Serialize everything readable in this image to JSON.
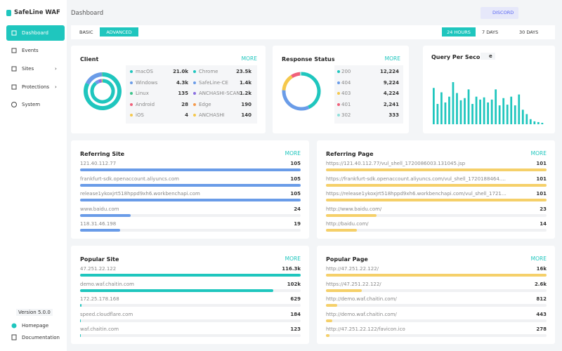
{
  "sidebar": {
    "brand": "SafeLine WAF",
    "nav": [
      "Dashboard",
      "Events",
      "Sites",
      "Protections",
      "System"
    ],
    "version": "Version 5.0.0",
    "links": [
      "Homepage",
      "Documentation"
    ]
  },
  "header": {
    "title": "Dashboard",
    "discord": "DISCORD"
  },
  "tabs": [
    "BASIC",
    "ADVANCED"
  ],
  "ranges": [
    "24 HOURS",
    "7 DAYS",
    "30 DAYS"
  ],
  "client": {
    "title": "Client",
    "more": "MORE",
    "os": [
      {
        "name": "macOS",
        "value": 21000,
        "value_label": "21.0k",
        "color": "#1fc6be"
      },
      {
        "name": "Windows",
        "value": 4300,
        "value_label": "4.3k",
        "color": "#6a9ce8"
      },
      {
        "name": "Linux",
        "value": 135,
        "color": "#3cc38a"
      },
      {
        "name": "Android",
        "value": 28,
        "color": "#f0607a"
      },
      {
        "name": "iOS",
        "value": 4,
        "color": "#f5c84c"
      }
    ],
    "browser": [
      {
        "name": "Chrome",
        "value": 23500,
        "value_label": "23.5k",
        "color": "#1fc6be"
      },
      {
        "name": "SafeLine-CE",
        "value": 1400,
        "value_label": "1.4k",
        "color": "#6a9ce8"
      },
      {
        "name": "ANCHASHI-SCAN",
        "value": 1200,
        "value_label": "1.2k",
        "color": "#8b6fe0"
      },
      {
        "name": "Edge",
        "value": 190,
        "color": "#f59a4c"
      },
      {
        "name": "ANCHASHI",
        "value": 140,
        "color": "#f5c84c"
      }
    ]
  },
  "response": {
    "title": "Response Status",
    "more": "MORE",
    "items": [
      {
        "name": "200",
        "value": 12224,
        "value_label": "12,224",
        "color": "#1fc6be"
      },
      {
        "name": "404",
        "value": 9224,
        "value_label": "9,224",
        "color": "#6a9ce8"
      },
      {
        "name": "403",
        "value": 4224,
        "value_label": "4,224",
        "color": "#f5c84c"
      },
      {
        "name": "401",
        "value": 2241,
        "value_label": "2,241",
        "color": "#f0607a"
      },
      {
        "name": "302",
        "value": 333,
        "color": "#8fe0db"
      }
    ]
  },
  "qps": {
    "title": "Query Per Second",
    "badge": "e",
    "color": "#1fc6be",
    "values": [
      50,
      28,
      44,
      30,
      38,
      58,
      43,
      33,
      36,
      48,
      28,
      38,
      34,
      37,
      30,
      34,
      48,
      26,
      36,
      27,
      38,
      26,
      41,
      20,
      14,
      7,
      4,
      3,
      2
    ]
  },
  "lists": [
    {
      "title": "Referring Site",
      "more": "MORE",
      "color": "#6a9ce8",
      "rows": [
        {
          "name": "121.40.112.77",
          "value": 105
        },
        {
          "name": "frankfurt-sdk.openaccount.aliyuncs.com",
          "value": 105
        },
        {
          "name": "release1ykoxjrt518hppd9xh6.workbenchapi.com",
          "value": 105
        },
        {
          "name": "www.baidu.com",
          "value": 24
        },
        {
          "name": "118.31.46.198",
          "value": 19
        }
      ]
    },
    {
      "title": "Referring Page",
      "more": "MORE",
      "color": "#f5d06a",
      "rows": [
        {
          "name": "https://121.40.112.77/vul_shell_1720086003.131045.jsp",
          "value": 101
        },
        {
          "name": "https://frankfurt-sdk.openaccount.aliyuncs.com/vul_shell_1720188464.9283571...",
          "value": 101
        },
        {
          "name": "https://release1ykoxjrt518hppd9xh6.workbenchapi.com/vul_shell_17210379​86...",
          "value": 101
        },
        {
          "name": "http://www.baidu.com/",
          "value": 23
        },
        {
          "name": "http://baidu.com/",
          "value": 14
        }
      ]
    },
    {
      "title": "Popular Site",
      "more": "MORE",
      "color": "#1fc6be",
      "rows": [
        {
          "name": "47.251.22.122",
          "value": 116300,
          "value_label": "116.3k"
        },
        {
          "name": "demo.waf.chaitin.com",
          "value": 102000,
          "value_label": "102k"
        },
        {
          "name": "172.25.178.168",
          "value": 629
        },
        {
          "name": "speed.cloudflare.com",
          "value": 184
        },
        {
          "name": "waf.chaitin.com",
          "value": 123
        }
      ]
    },
    {
      "title": "Popular Page",
      "more": "MORE",
      "color": "#f5d06a",
      "rows": [
        {
          "name": "http://47.251.22.122/",
          "value": 16000,
          "value_label": "16k"
        },
        {
          "name": "https://47.251.22.122/",
          "value": 2600,
          "value_label": "2.6k"
        },
        {
          "name": "http://demo.waf.chaitin.com/",
          "value": 812
        },
        {
          "name": "http://demo.waf.chaitin.com/",
          "value": 443
        },
        {
          "name": "http://47.251.22.122/favicon.ico",
          "value": 278
        }
      ]
    }
  ]
}
